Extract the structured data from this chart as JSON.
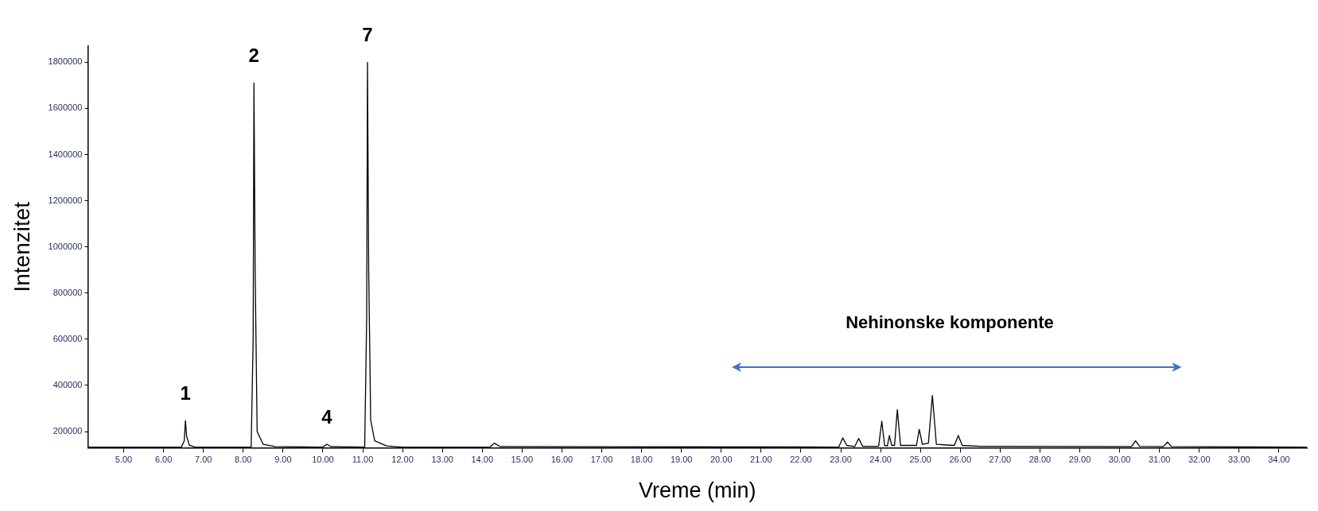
{
  "chart_data": {
    "type": "line",
    "xlabel": "Vreme (min)",
    "ylabel": "Intenzitet",
    "xlim": [
      4.1,
      34.7
    ],
    "xticks": [
      {
        "value": 5,
        "label": "5.00"
      },
      {
        "value": 6,
        "label": "6.00"
      },
      {
        "value": 7,
        "label": "7.00"
      },
      {
        "value": 8,
        "label": "8.00"
      },
      {
        "value": 9,
        "label": "9.00"
      },
      {
        "value": 10,
        "label": "10.00"
      },
      {
        "value": 11,
        "label": "11.00"
      },
      {
        "value": 12,
        "label": "12.00"
      },
      {
        "value": 13,
        "label": "13.00"
      },
      {
        "value": 14,
        "label": "14.00"
      },
      {
        "value": 15,
        "label": "15.00"
      },
      {
        "value": 16,
        "label": "16.00"
      },
      {
        "value": 17,
        "label": "17.00"
      },
      {
        "value": 18,
        "label": "18.00"
      },
      {
        "value": 19,
        "label": "19.00"
      },
      {
        "value": 20,
        "label": "20.00"
      },
      {
        "value": 21,
        "label": "21.00"
      },
      {
        "value": 22,
        "label": "22.00"
      },
      {
        "value": 23,
        "label": "23.00"
      },
      {
        "value": 24,
        "label": "24.00"
      },
      {
        "value": 25,
        "label": "25.00"
      },
      {
        "value": 26,
        "label": "26.00"
      },
      {
        "value": 27,
        "label": "27.00"
      },
      {
        "value": 28,
        "label": "28.00"
      },
      {
        "value": 29,
        "label": "29.00"
      },
      {
        "value": 30,
        "label": "30.00"
      },
      {
        "value": 31,
        "label": "31.00"
      },
      {
        "value": 32,
        "label": "32.00"
      },
      {
        "value": 33,
        "label": "33.00"
      },
      {
        "value": 34,
        "label": "34.00"
      }
    ],
    "ylim": [
      130000,
      1870000
    ],
    "yticks": [
      200000,
      400000,
      600000,
      800000,
      1000000,
      1200000,
      1400000,
      1600000,
      1800000
    ],
    "grid": false,
    "legend": false,
    "marker": "none",
    "line_style": "solid",
    "series": [
      {
        "color": "#000000",
        "x": [
          4.1,
          6.45,
          6.52,
          6.55,
          6.58,
          6.65,
          6.8,
          8.2,
          8.25,
          8.27,
          8.3,
          8.35,
          8.5,
          8.8,
          10.0,
          10.1,
          10.2,
          11.05,
          11.1,
          11.12,
          11.15,
          11.2,
          11.3,
          11.6,
          12.0,
          14.2,
          14.3,
          14.45,
          22.95,
          23.05,
          23.15,
          23.35,
          23.45,
          23.55,
          23.95,
          24.03,
          24.1,
          24.17,
          24.22,
          24.28,
          24.35,
          24.42,
          24.5,
          24.9,
          24.97,
          25.05,
          25.2,
          25.3,
          25.4,
          25.85,
          25.95,
          26.05,
          26.5,
          30.3,
          30.4,
          30.5,
          31.1,
          31.2,
          31.3,
          34.7
        ],
        "values": [
          133000,
          133000,
          160000,
          247000,
          180000,
          140000,
          133000,
          133000,
          600000,
          1710000,
          900000,
          200000,
          145000,
          135000,
          133000,
          145000,
          135000,
          133000,
          700000,
          1800000,
          900000,
          250000,
          160000,
          138000,
          133000,
          133000,
          150000,
          135000,
          133000,
          173000,
          140000,
          135000,
          170000,
          136000,
          136000,
          245000,
          140000,
          138000,
          183000,
          140000,
          140000,
          295000,
          140000,
          140000,
          209000,
          145000,
          150000,
          356000,
          145000,
          140000,
          183000,
          140000,
          136000,
          135000,
          160000,
          136000,
          135000,
          155000,
          135000,
          133000
        ]
      }
    ],
    "annotations": [
      {
        "text": "1",
        "x": 6.55,
        "y": 247000
      },
      {
        "text": "2",
        "x": 8.27,
        "y": 1710000
      },
      {
        "text": "4",
        "x": 10.1,
        "y": 145000
      },
      {
        "text": "7",
        "x": 11.12,
        "y": 1800000
      },
      "Nehinonske komponente"
    ]
  }
}
